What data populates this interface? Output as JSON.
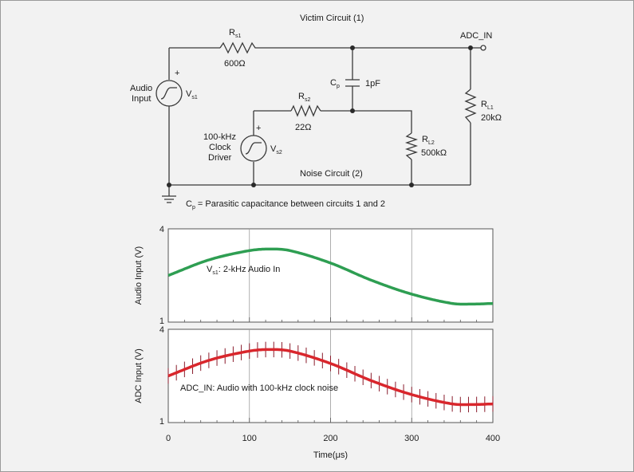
{
  "colors": {
    "wire": "#3a3a3a",
    "audio": "#2e9e52",
    "adc": "#d9262c",
    "adc_spike": "#8a1c2c",
    "grid": "#9a9a9a",
    "background": "#f2f2f2"
  },
  "circuit": {
    "victim_title": "Victim Circuit (1)",
    "noise_title": "Noise Circuit (2)",
    "adc_in": "ADC_IN",
    "rs1": {
      "main": "R",
      "sub": "s1",
      "value": "600Ω"
    },
    "cp": {
      "main": "C",
      "sub": "p",
      "value": "1pF"
    },
    "rl1": {
      "main": "R",
      "sub": "L1",
      "value": "20kΩ"
    },
    "rs2": {
      "main": "R",
      "sub": "s2",
      "value": "22Ω"
    },
    "rl2": {
      "main": "R",
      "sub": "L2",
      "value": "500kΩ"
    },
    "vs1": {
      "main": "V",
      "sub": "s1",
      "line1": "Audio",
      "line2": "Input"
    },
    "vs2": {
      "main": "V",
      "sub": "s2",
      "line1": "100-kHz",
      "line2": "Clock",
      "line3": "Driver"
    },
    "plus": "+",
    "parasitic_note": {
      "main": "C",
      "sub": "p",
      "text": " = Parasitic capacitance between circuits 1 and 2"
    }
  },
  "chart_data": [
    {
      "type": "line",
      "ylabel": "Audio Input (V)",
      "ylim": [
        1,
        4
      ],
      "xlim": [
        0,
        400
      ],
      "yticks": [
        "1",
        "4"
      ],
      "grid": "vertical at 100, 200, 300",
      "annotation": {
        "main": "V",
        "sub": "s1",
        "text": ": 2-kHz Audio In"
      },
      "series": [
        {
          "x": [
            0,
            50,
            100,
            125,
            150,
            200,
            250,
            300,
            350,
            375,
            400
          ],
          "y": [
            2.5,
            3.0,
            3.3,
            3.35,
            3.3,
            2.9,
            2.35,
            1.9,
            1.6,
            1.58,
            1.6
          ]
        }
      ]
    },
    {
      "type": "line",
      "ylabel": "ADC Input (V)",
      "ylim": [
        1,
        4
      ],
      "xlim": [
        0,
        400
      ],
      "yticks": [
        "1",
        "4"
      ],
      "xticks": [
        "0",
        "100",
        "200",
        "300",
        "400"
      ],
      "xlabel": "Time(μs)",
      "grid": "vertical at 100, 200, 300",
      "annotation": "ADC_IN: Audio with 100-kHz clock noise",
      "noise": "100-kHz clock spikes every 10 μs, ±0.25 V",
      "series": [
        {
          "x": [
            0,
            50,
            100,
            125,
            150,
            200,
            250,
            300,
            350,
            375,
            400
          ],
          "y": [
            2.5,
            3.0,
            3.3,
            3.35,
            3.3,
            2.9,
            2.35,
            1.9,
            1.6,
            1.58,
            1.6
          ]
        }
      ]
    }
  ]
}
